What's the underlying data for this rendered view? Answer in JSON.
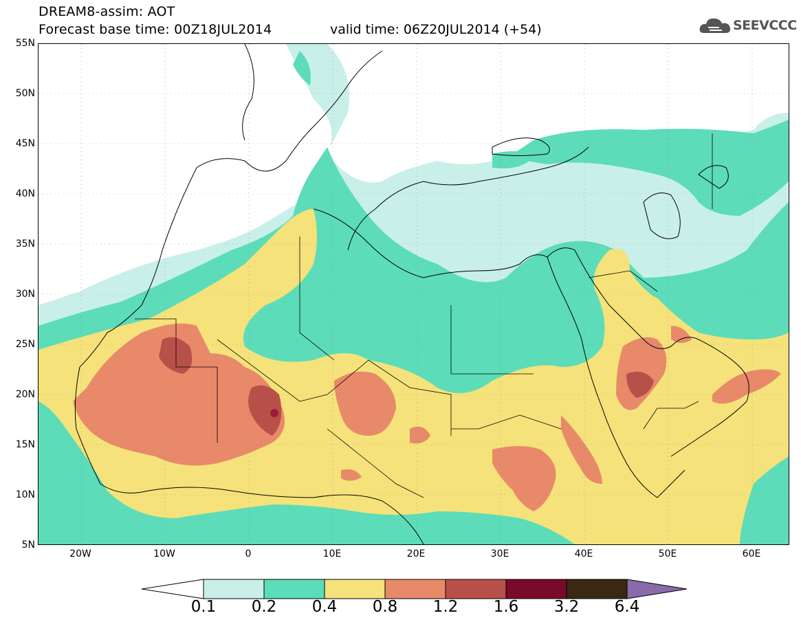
{
  "header": {
    "line1": "DREAM8-assim: AOT",
    "line2": "Forecast base time: 00Z18JUL2014",
    "valid": "valid time: 06Z20JUL2014 (+54)",
    "logo_text": "SEEVCCC"
  },
  "axes": {
    "lat_labels": [
      "55N",
      "50N",
      "45N",
      "40N",
      "35N",
      "30N",
      "25N",
      "20N",
      "15N",
      "10N",
      "5N"
    ],
    "lon_labels": [
      "20W",
      "10W",
      "0",
      "10E",
      "20E",
      "30E",
      "40E",
      "50E",
      "60E"
    ]
  },
  "colorbar": {
    "labels": [
      "0.1",
      "0.2",
      "0.4",
      "0.8",
      "1.2",
      "1.6",
      "3.2",
      "6.4"
    ],
    "colors": [
      "#ffffff",
      "#c8f0e8",
      "#5cdcb8",
      "#f5e27a",
      "#e8896a",
      "#b8504a",
      "#7a0a2a",
      "#3a2814",
      "#8a6aa8"
    ]
  },
  "map": {
    "colors": {
      "c01": "#c8f0e8",
      "c02": "#5cdcb8",
      "c04": "#f5e27a",
      "c08": "#e8896a",
      "c12": "#b8504a",
      "c16": "#a0183a"
    }
  }
}
